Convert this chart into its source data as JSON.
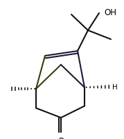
{
  "background": "#ffffff",
  "bond_color": "#111111",
  "bond_dark": "#1a1a35",
  "bond_olive": "#3a3a10",
  "text_color": "#000000",
  "line_width": 1.5,
  "font_size": 8.5
}
